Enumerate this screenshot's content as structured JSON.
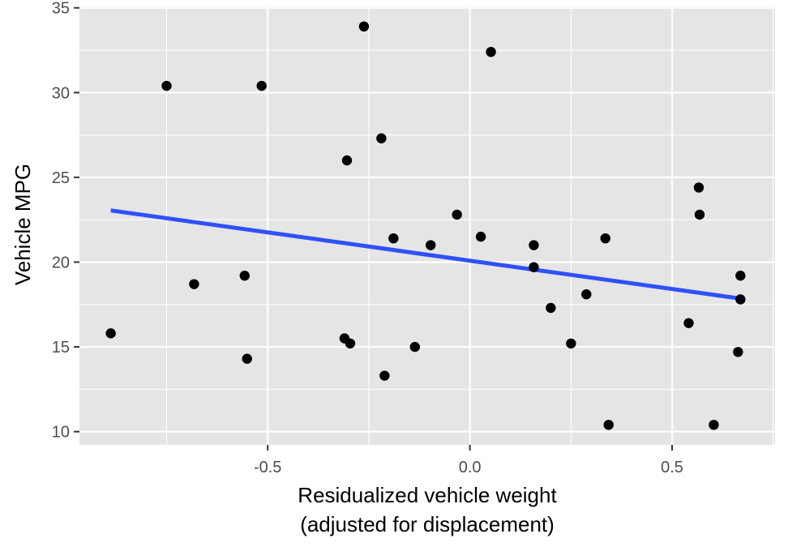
{
  "chart_data": {
    "type": "scatter",
    "xlabel_line1": "Residualized vehicle weight",
    "xlabel_line2": "(adjusted for displacement)",
    "ylabel": "Vehicle MPG",
    "xlim": [
      -0.9655,
      0.7545
    ],
    "ylim": [
      9.22,
      35.08
    ],
    "x_ticks": [
      -0.5,
      0.0,
      0.5
    ],
    "x_tick_labels": [
      "-0.5",
      "0.0",
      "0.5"
    ],
    "y_ticks": [
      10,
      15,
      20,
      25,
      30,
      35
    ],
    "y_tick_labels": [
      "10",
      "15",
      "20",
      "25",
      "30",
      "35"
    ],
    "grid": true,
    "points": [
      {
        "x": -0.888,
        "y": 15.8
      },
      {
        "x": -0.75,
        "y": 30.4
      },
      {
        "x": -0.682,
        "y": 18.7
      },
      {
        "x": -0.557,
        "y": 19.2
      },
      {
        "x": -0.551,
        "y": 14.3
      },
      {
        "x": -0.515,
        "y": 30.4
      },
      {
        "x": -0.31,
        "y": 15.5
      },
      {
        "x": -0.304,
        "y": 26.0
      },
      {
        "x": -0.296,
        "y": 15.2
      },
      {
        "x": -0.262,
        "y": 33.9
      },
      {
        "x": -0.219,
        "y": 27.3
      },
      {
        "x": -0.211,
        "y": 13.3
      },
      {
        "x": -0.189,
        "y": 21.4
      },
      {
        "x": -0.136,
        "y": 15.0
      },
      {
        "x": -0.097,
        "y": 21.0
      },
      {
        "x": -0.032,
        "y": 22.8
      },
      {
        "x": 0.027,
        "y": 21.5
      },
      {
        "x": 0.052,
        "y": 32.4
      },
      {
        "x": 0.158,
        "y": 21.0
      },
      {
        "x": 0.158,
        "y": 19.7
      },
      {
        "x": 0.2,
        "y": 17.3
      },
      {
        "x": 0.25,
        "y": 15.2
      },
      {
        "x": 0.288,
        "y": 18.1
      },
      {
        "x": 0.335,
        "y": 21.4
      },
      {
        "x": 0.343,
        "y": 10.4
      },
      {
        "x": 0.541,
        "y": 16.4
      },
      {
        "x": 0.566,
        "y": 24.4
      },
      {
        "x": 0.568,
        "y": 22.8
      },
      {
        "x": 0.603,
        "y": 10.4
      },
      {
        "x": 0.663,
        "y": 14.7
      },
      {
        "x": 0.669,
        "y": 19.2
      },
      {
        "x": 0.669,
        "y": 17.8
      }
    ],
    "trend_line": {
      "x": [
        -0.888,
        0.669
      ],
      "y": [
        23.05,
        17.85
      ]
    },
    "colors": {
      "panel": "#e5e5e5",
      "grid": "#ffffff",
      "point": "#000000",
      "trend": "#3050f8",
      "tick": "#333333"
    }
  }
}
